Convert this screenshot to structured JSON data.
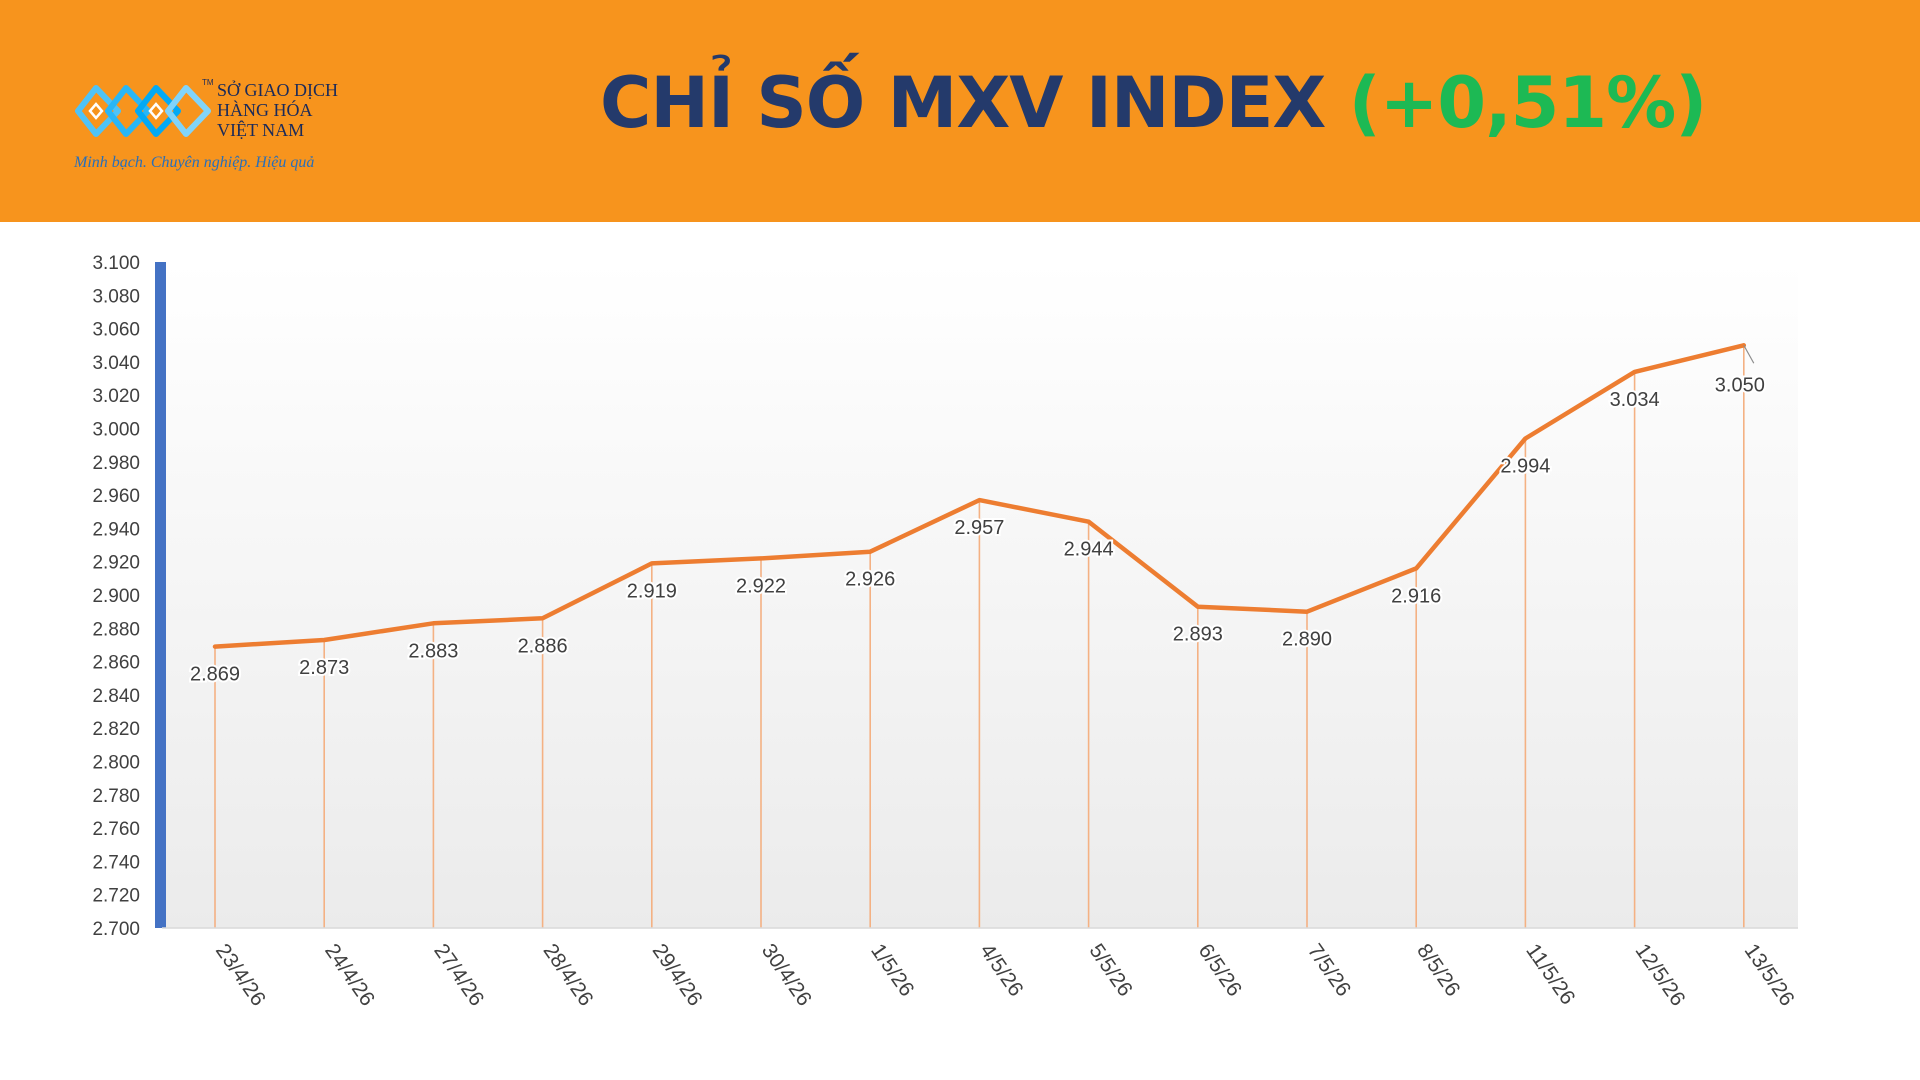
{
  "header": {
    "logo": {
      "icon": "mxv-logo-icon",
      "tm": "TM",
      "name_line1": "SỞ GIAO DỊCH",
      "name_line2": "HÀNG HÓA",
      "name_line3": "VIỆT NAM",
      "slogan": "Minh bạch. Chuyên nghiệp. Hiệu quả"
    },
    "title_main": "CHỈ SỐ MXV INDEX",
    "title_change": "(+0,51%)"
  },
  "colors": {
    "header_bg": "#F7941D",
    "title": "#243A6B",
    "change": "#1DB954",
    "line": "#ED7D31",
    "axis_bar": "#4472C4",
    "label": "#404040"
  },
  "chart_data": {
    "type": "line",
    "categories": [
      "23/4/26",
      "24/4/26",
      "27/4/26",
      "28/4/26",
      "29/4/26",
      "30/4/26",
      "1/5/26",
      "4/5/26",
      "5/5/26",
      "6/5/26",
      "7/5/26",
      "8/5/26",
      "11/5/26",
      "12/5/26",
      "13/5/26"
    ],
    "values": [
      2869,
      2873,
      2883,
      2886,
      2919,
      2922,
      2926,
      2957,
      2944,
      2893,
      2890,
      2916,
      2994,
      3034,
      3050
    ],
    "data_labels": [
      "2.869",
      "2.873",
      "2.883",
      "2.886",
      "2.919",
      "2.922",
      "2.926",
      "2.957",
      "2.944",
      "2.893",
      "2.890",
      "2.916",
      "2.994",
      "3.034",
      "3.050"
    ],
    "y_ticks": [
      "2.700",
      "2.720",
      "2.740",
      "2.760",
      "2.780",
      "2.800",
      "2.820",
      "2.840",
      "2.860",
      "2.880",
      "2.900",
      "2.920",
      "2.940",
      "2.960",
      "2.980",
      "3.000",
      "3.020",
      "3.040",
      "3.060",
      "3.080",
      "3.100"
    ],
    "ylim": [
      2700,
      3100
    ],
    "drop_lines": true,
    "grid": false,
    "legend": "none"
  }
}
